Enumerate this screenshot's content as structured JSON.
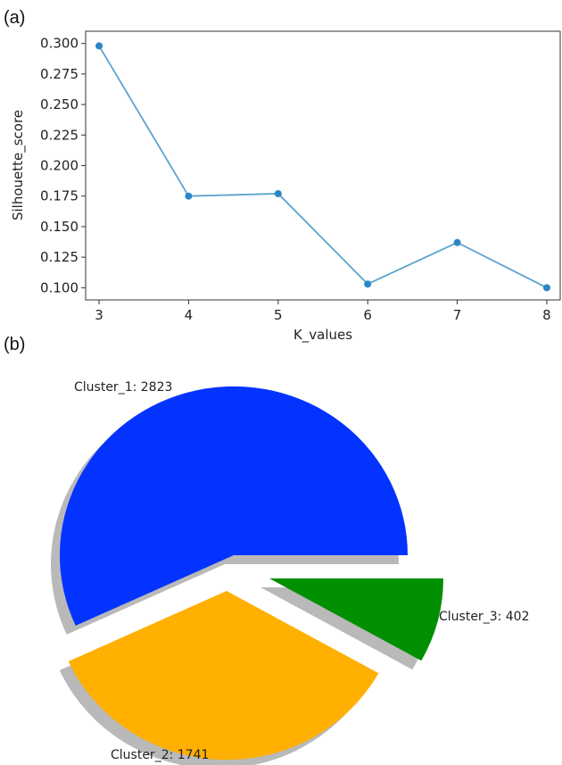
{
  "panels": {
    "a": "(a)",
    "b": "(b)"
  },
  "chart_data": [
    {
      "type": "line",
      "title": "",
      "xlabel": "K_values",
      "ylabel": "Silhouette_score",
      "x": [
        3,
        4,
        5,
        6,
        7,
        8
      ],
      "y": [
        0.298,
        0.175,
        0.177,
        0.103,
        0.137,
        0.1
      ],
      "xlim": [
        2.85,
        8.15
      ],
      "ylim": [
        0.09,
        0.31
      ],
      "xticks": [
        "3",
        "4",
        "5",
        "6",
        "7",
        "8"
      ],
      "yticks": [
        "0.100",
        "0.125",
        "0.150",
        "0.175",
        "0.200",
        "0.225",
        "0.250",
        "0.275",
        "0.300"
      ],
      "grid": false,
      "color": "#5ba3cf"
    },
    {
      "type": "pie",
      "title": "",
      "slices": [
        {
          "label": "Cluster_1: 2823",
          "value": 2823,
          "color": "#0433ff"
        },
        {
          "label": "Cluster_2: 1741",
          "value": 1741,
          "color": "#ffb000"
        },
        {
          "label": "Cluster_3: 402",
          "value": 402,
          "color": "#008f00"
        }
      ],
      "exploded": true,
      "shadow": true
    }
  ]
}
